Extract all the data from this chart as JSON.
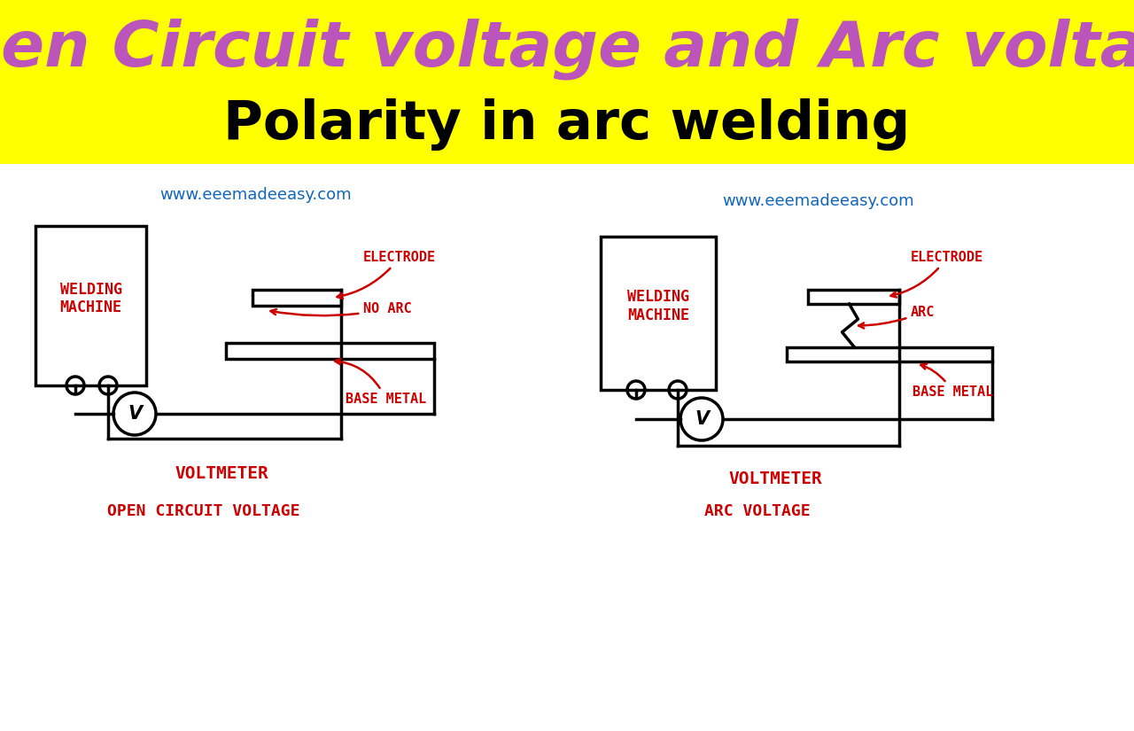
{
  "title1": "Open Circuit voltage and Arc voltage",
  "title2": "Polarity in arc welding",
  "title1_color": "#BB55BB",
  "title2_color": "#000000",
  "header_bg": "#FFFF00",
  "bg_color": "#FFFFFF",
  "website": "www.eeemadeeasy.com",
  "website_color": "#1166BB",
  "label_color": "#CC0000",
  "line_color": "#000000",
  "lw": 2.5
}
